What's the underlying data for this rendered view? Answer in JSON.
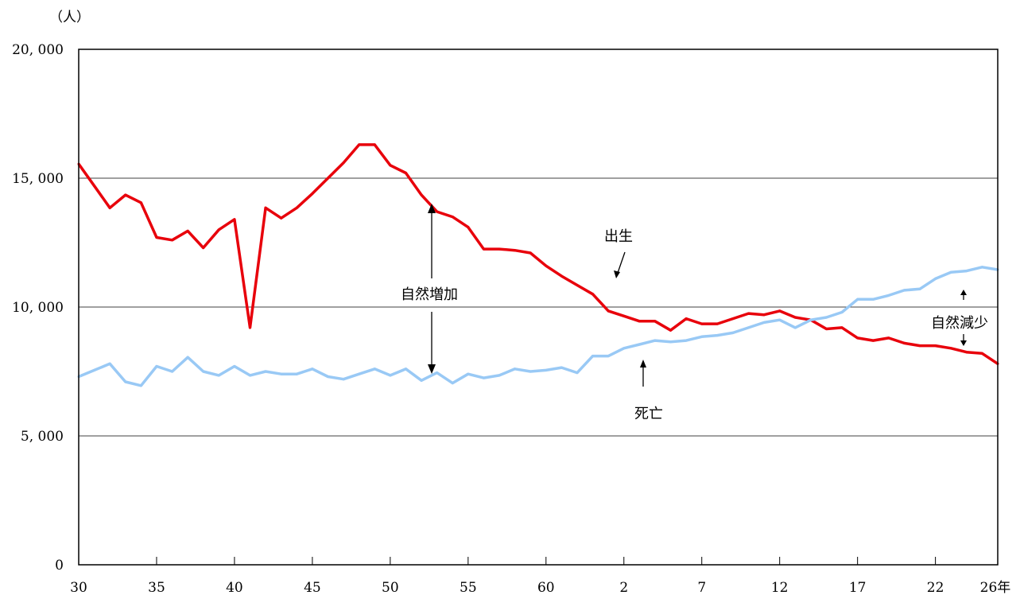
{
  "chart_data": {
    "type": "line",
    "y_unit_label": "（人）",
    "x_suffix": "年",
    "ylim": [
      0,
      20000
    ],
    "y_ticks": [
      {
        "value": 0,
        "label": "0"
      },
      {
        "value": 5000,
        "label": "5, 000"
      },
      {
        "value": 10000,
        "label": "10, 000"
      },
      {
        "value": 15000,
        "label": "15, 000"
      },
      {
        "value": 20000,
        "label": "20, 000"
      }
    ],
    "x_ticks": [
      {
        "index": 0,
        "label": "30"
      },
      {
        "index": 5,
        "label": "35"
      },
      {
        "index": 10,
        "label": "40"
      },
      {
        "index": 15,
        "label": "45"
      },
      {
        "index": 20,
        "label": "50"
      },
      {
        "index": 25,
        "label": "55"
      },
      {
        "index": 30,
        "label": "60"
      },
      {
        "index": 35,
        "label": "2"
      },
      {
        "index": 40,
        "label": "7"
      },
      {
        "index": 45,
        "label": "12"
      },
      {
        "index": 50,
        "label": "17"
      },
      {
        "index": 55,
        "label": "22"
      },
      {
        "index": 59,
        "label": "26"
      }
    ],
    "grid": "horizontal",
    "series": [
      {
        "name": "出生",
        "color": "#e8000b",
        "values": [
          15550,
          14700,
          13850,
          14350,
          14050,
          12700,
          12600,
          12950,
          12300,
          13000,
          13400,
          9200,
          13850,
          13450,
          13850,
          14400,
          15000,
          15600,
          16300,
          16300,
          15500,
          15200,
          14350,
          13700,
          13500,
          13100,
          12250,
          12250,
          12200,
          12100,
          11600,
          11200,
          10850,
          10500,
          9850,
          9650,
          9450,
          9450,
          9100,
          9550,
          9350,
          9350,
          9550,
          9750,
          9700,
          9850,
          9600,
          9500,
          9150,
          9200,
          8800,
          8700,
          8800,
          8600,
          8500,
          8500,
          8400,
          8250,
          8200,
          7800
        ]
      },
      {
        "name": "死亡",
        "color": "#99c9f5",
        "values": [
          7300,
          7550,
          7800,
          7100,
          6950,
          7700,
          7500,
          8050,
          7500,
          7350,
          7700,
          7350,
          7500,
          7400,
          7400,
          7600,
          7300,
          7200,
          7400,
          7600,
          7350,
          7600,
          7150,
          7450,
          7050,
          7400,
          7250,
          7350,
          7600,
          7500,
          7550,
          7650,
          7450,
          8100,
          8100,
          8400,
          8550,
          8700,
          8650,
          8700,
          8850,
          8900,
          9000,
          9200,
          9400,
          9500,
          9200,
          9500,
          9600,
          9800,
          10300,
          10300,
          10450,
          10650,
          10700,
          11100,
          11350,
          11400,
          11550,
          11450
        ]
      }
    ],
    "annotations": {
      "birth_label": "出生",
      "death_label": "死亡",
      "natural_increase_label": "自然増加",
      "natural_decrease_label": "自然減少"
    }
  }
}
